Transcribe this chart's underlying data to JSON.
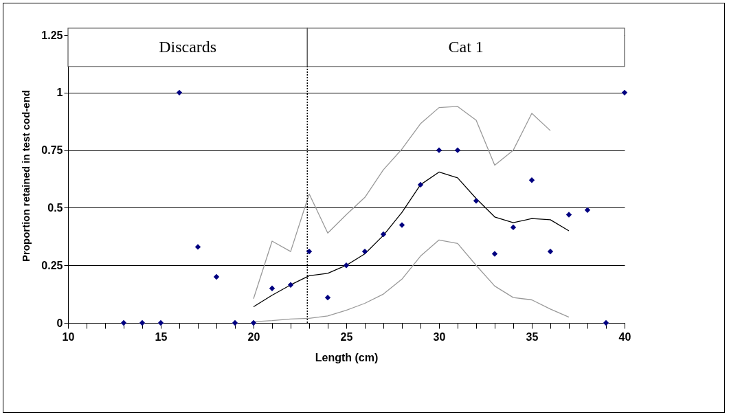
{
  "chart_data": {
    "type": "scatter",
    "xlabel": "Length (cm)",
    "ylabel": "Proportion retained in test cod-end",
    "xlim": [
      10,
      40
    ],
    "xticks": [
      10,
      {
        "value": 11,
        "label": null
      },
      {
        "value": 12,
        "label": null
      },
      {
        "value": 13,
        "label": null
      },
      {
        "value": 14,
        "label": null
      },
      15,
      {
        "value": 16,
        "label": null
      },
      {
        "value": 17,
        "label": null
      },
      {
        "value": 18,
        "label": null
      },
      {
        "value": 19,
        "label": null
      },
      20,
      {
        "value": 21,
        "label": null
      },
      {
        "value": 22,
        "label": null
      },
      {
        "value": 23,
        "label": null
      },
      {
        "value": 24,
        "label": null
      },
      25,
      {
        "value": 26,
        "label": null
      },
      {
        "value": 27,
        "label": null
      },
      {
        "value": 28,
        "label": null
      },
      {
        "value": 29,
        "label": null
      },
      30,
      {
        "value": 31,
        "label": null
      },
      {
        "value": 32,
        "label": null
      },
      {
        "value": 33,
        "label": null
      },
      {
        "value": 34,
        "label": null
      },
      35,
      {
        "value": 36,
        "label": null
      },
      {
        "value": 37,
        "label": null
      },
      {
        "value": 38,
        "label": null
      },
      {
        "value": 39,
        "label": null
      },
      40
    ],
    "ylim": [
      0,
      1.28
    ],
    "yticks": [
      0,
      0.25,
      0.5,
      0.75,
      1,
      1.25
    ],
    "grid": "y",
    "series": [
      {
        "type": "scatter",
        "marker": "diamond",
        "color": "#000080",
        "x": [
          13,
          14,
          15,
          16,
          17,
          18,
          19,
          20,
          21,
          22,
          23,
          24,
          25,
          26,
          27,
          28,
          29,
          30,
          31,
          32,
          33,
          34,
          35,
          36,
          37,
          38,
          39,
          40
        ],
        "values": [
          0,
          0,
          0,
          1,
          0.33,
          0.2,
          0,
          0,
          0.15,
          0.165,
          0.31,
          0.11,
          0.25,
          0.31,
          0.385,
          0.425,
          0.6,
          0.75,
          0.75,
          0.53,
          0.3,
          0.415,
          0.62,
          0.31,
          0.47,
          0.49,
          0,
          1
        ]
      },
      {
        "type": "line",
        "color": "#000000",
        "x": [
          20,
          21,
          22,
          23,
          24,
          25,
          26,
          27,
          28,
          29,
          30,
          31,
          32,
          33,
          34,
          35,
          36,
          37
        ],
        "values": [
          0.07,
          0.12,
          0.165,
          0.205,
          0.215,
          0.25,
          0.3,
          0.38,
          0.48,
          0.6,
          0.655,
          0.63,
          0.54,
          0.46,
          0.435,
          0.453,
          0.448,
          0.4
        ]
      },
      {
        "type": "line",
        "color": "#999999",
        "x": [
          20,
          21,
          22,
          23,
          24,
          25,
          26,
          27,
          28,
          29,
          30,
          31,
          32,
          33,
          34,
          35,
          36
        ],
        "values": [
          0.105,
          0.355,
          0.31,
          0.56,
          0.39,
          0.47,
          0.545,
          0.665,
          0.755,
          0.865,
          0.935,
          0.94,
          0.88,
          0.685,
          0.75,
          0.91,
          0.835
        ]
      },
      {
        "type": "line",
        "color": "#999999",
        "x": [
          20,
          21,
          22,
          23,
          24,
          25,
          26,
          27,
          28,
          29,
          30,
          31,
          32,
          33,
          34,
          35,
          36,
          37
        ],
        "values": [
          0.005,
          0.01,
          0.017,
          0.02,
          0.03,
          0.055,
          0.085,
          0.125,
          0.19,
          0.29,
          0.36,
          0.345,
          0.25,
          0.16,
          0.11,
          0.1,
          0.06,
          0.025
        ]
      }
    ],
    "ref_lines": [
      {
        "axis": "x",
        "value": 22.9,
        "line_style": "dotted",
        "color": "#000000"
      }
    ],
    "bands": [
      {
        "axis": "x",
        "from": 10,
        "to": 22.9,
        "label": "Discards",
        "color": "#ffffff"
      },
      {
        "axis": "x",
        "from": 22.9,
        "to": 40,
        "label": "Cat 1",
        "color": "#ffffff"
      }
    ]
  }
}
